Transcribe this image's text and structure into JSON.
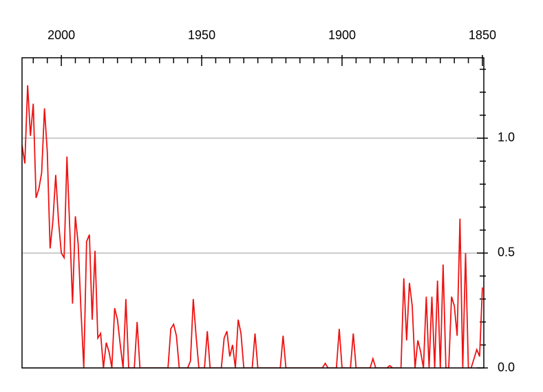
{
  "chart_data": {
    "type": "line",
    "x": [
      2014,
      2013,
      2012,
      2011,
      2010,
      2009,
      2008,
      2007,
      2006,
      2005,
      2004,
      2003,
      2002,
      2001,
      2000,
      1999,
      1998,
      1997,
      1996,
      1995,
      1994,
      1993,
      1992,
      1991,
      1990,
      1989,
      1988,
      1987,
      1986,
      1985,
      1984,
      1983,
      1982,
      1981,
      1980,
      1979,
      1978,
      1977,
      1976,
      1975,
      1974,
      1973,
      1972,
      1971,
      1970,
      1969,
      1968,
      1967,
      1966,
      1965,
      1964,
      1963,
      1962,
      1961,
      1960,
      1959,
      1958,
      1957,
      1956,
      1955,
      1954,
      1953,
      1952,
      1951,
      1950,
      1949,
      1948,
      1947,
      1946,
      1945,
      1944,
      1943,
      1942,
      1941,
      1940,
      1939,
      1938,
      1937,
      1936,
      1935,
      1934,
      1933,
      1932,
      1931,
      1930,
      1929,
      1928,
      1927,
      1926,
      1925,
      1924,
      1923,
      1922,
      1921,
      1920,
      1919,
      1918,
      1917,
      1916,
      1915,
      1914,
      1913,
      1912,
      1911,
      1910,
      1909,
      1908,
      1907,
      1906,
      1905,
      1904,
      1903,
      1902,
      1901,
      1900,
      1899,
      1898,
      1897,
      1896,
      1895,
      1894,
      1893,
      1892,
      1891,
      1890,
      1889,
      1888,
      1887,
      1886,
      1885,
      1884,
      1883,
      1882,
      1881,
      1880,
      1879,
      1878,
      1877,
      1876,
      1875,
      1874,
      1873,
      1872,
      1871,
      1870,
      1869,
      1868,
      1867,
      1866,
      1865,
      1864,
      1863,
      1862,
      1861,
      1860,
      1859,
      1858,
      1857,
      1856,
      1855,
      1854,
      1853,
      1852,
      1851,
      1850
    ],
    "values": [
      0.97,
      0.89,
      1.23,
      1.01,
      1.15,
      0.74,
      0.78,
      0.85,
      1.13,
      0.94,
      0.52,
      0.64,
      0.84,
      0.64,
      0.5,
      0.48,
      0.92,
      0.61,
      0.28,
      0.66,
      0.54,
      0.25,
      0,
      0.55,
      0.58,
      0.21,
      0.51,
      0.13,
      0.15,
      0,
      0.11,
      0.07,
      0,
      0.26,
      0.21,
      0.1,
      0,
      0.3,
      0,
      0,
      0,
      0.2,
      0,
      0,
      0,
      0,
      0,
      0,
      0,
      0,
      0,
      0,
      0,
      0.17,
      0.19,
      0.14,
      0,
      0,
      0,
      0,
      0.03,
      0.3,
      0.14,
      0,
      0,
      0,
      0.16,
      0,
      0,
      0,
      0,
      0,
      0.13,
      0.16,
      0.05,
      0.1,
      0,
      0.21,
      0.15,
      0,
      0,
      0,
      0,
      0.15,
      0,
      0,
      0,
      0,
      0,
      0,
      0,
      0,
      0,
      0.14,
      0,
      0,
      0,
      0,
      0,
      0,
      0,
      0,
      0,
      0,
      0,
      0,
      0,
      0,
      0.02,
      0,
      0,
      0,
      0,
      0.17,
      0,
      0,
      0,
      0,
      0.15,
      0,
      0,
      0,
      0,
      0,
      0,
      0.04,
      0,
      0,
      0,
      0,
      0,
      0.01,
      0,
      0,
      0,
      0,
      0.39,
      0.12,
      0.37,
      0.27,
      0,
      0.12,
      0.07,
      0,
      0.31,
      0,
      0.31,
      0,
      0.38,
      0,
      0.45,
      0,
      0,
      0.31,
      0.27,
      0.14,
      0.65,
      0,
      0.5,
      0,
      0,
      0.04,
      0.08,
      0.05,
      0.35
    ],
    "color": "#ee1111",
    "xlim": [
      2014,
      1849.5
    ],
    "xticks": [
      2000,
      1950,
      1900,
      1850
    ],
    "xminorticks": [
      2010,
      2005,
      1995,
      1990,
      1985,
      1980,
      1975,
      1970,
      1965,
      1960,
      1955,
      1945,
      1940,
      1935,
      1930,
      1925,
      1920,
      1915,
      1910,
      1905,
      1895,
      1890,
      1885,
      1880,
      1875,
      1870,
      1865,
      1860,
      1855
    ],
    "ylim": [
      0,
      1.35
    ],
    "yticks": [
      {
        "value": 0,
        "label": "0.0"
      },
      {
        "value": 0.5,
        "label": "0.5"
      },
      {
        "value": 1,
        "label": "1.0"
      }
    ],
    "yminorticks": [
      0.1,
      0.2,
      0.3,
      0.4,
      0.6,
      0.7,
      0.8,
      0.9,
      1.1,
      1.2,
      1.3
    ],
    "grid": true
  }
}
